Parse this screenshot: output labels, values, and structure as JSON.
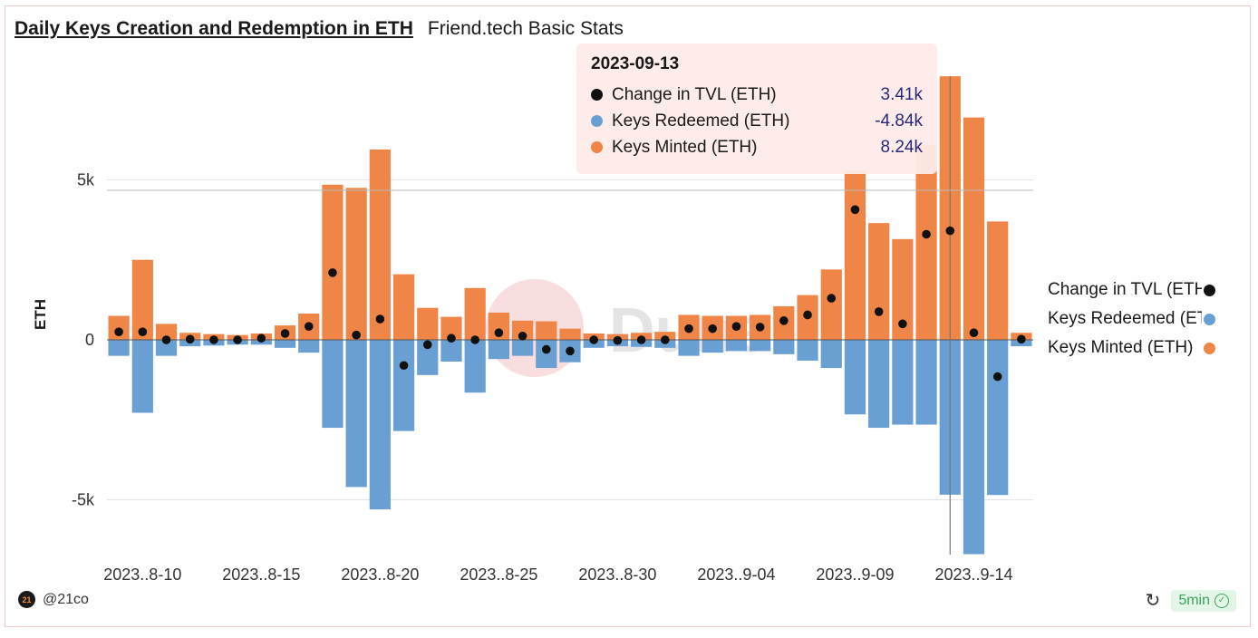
{
  "header": {
    "title": "Daily Keys Creation and Redemption in ETH",
    "subtitle": "Friend.tech Basic Stats"
  },
  "tooltip": {
    "date": "2023-09-13",
    "rows": [
      {
        "label": "Change in TVL (ETH)",
        "value": "3.41k",
        "color": "#111111"
      },
      {
        "label": "Keys Redeemed (ETH)",
        "value": "-4.84k",
        "color": "#6a9fd4"
      },
      {
        "label": "Keys Minted (ETH)",
        "value": "8.24k",
        "color": "#ef8547"
      }
    ]
  },
  "legend": [
    {
      "label": "Change in TVL (ETH)",
      "color": "#111111"
    },
    {
      "label": "Keys Redeemed (ETH)",
      "color": "#6a9fd4"
    },
    {
      "label": "Keys Minted (ETH)",
      "color": "#ef8547"
    }
  ],
  "footer": {
    "author": "@21co",
    "avatar_text": "21",
    "refresh_icon": "↻",
    "badge": "5min",
    "check_icon": "✓"
  },
  "watermark": "Dune",
  "chart_data": {
    "type": "bar",
    "ylabel": "ETH",
    "ylim": [
      -6.7,
      8.4
    ],
    "yticks": [
      {
        "value": 5,
        "label": "5k"
      },
      {
        "value": 0,
        "label": "0"
      },
      {
        "value": -5,
        "label": "-5k"
      }
    ],
    "xtick_labels": [
      "2023..8-10",
      "2023..8-15",
      "2023..8-20",
      "2023..8-25",
      "2023..8-30",
      "2023..9-04",
      "2023..9-09",
      "2023..9-14"
    ],
    "xtick_indices": [
      1,
      6,
      11,
      16,
      21,
      26,
      31,
      36
    ],
    "categories": [
      "2023-08-09",
      "2023-08-10",
      "2023-08-11",
      "2023-08-12",
      "2023-08-13",
      "2023-08-14",
      "2023-08-15",
      "2023-08-16",
      "2023-08-17",
      "2023-08-18",
      "2023-08-19",
      "2023-08-20",
      "2023-08-21",
      "2023-08-22",
      "2023-08-23",
      "2023-08-24",
      "2023-08-25",
      "2023-08-26",
      "2023-08-27",
      "2023-08-28",
      "2023-08-29",
      "2023-08-30",
      "2023-08-31",
      "2023-09-01",
      "2023-09-02",
      "2023-09-03",
      "2023-09-04",
      "2023-09-05",
      "2023-09-06",
      "2023-09-07",
      "2023-09-08",
      "2023-09-09",
      "2023-09-10",
      "2023-09-11",
      "2023-09-12",
      "2023-09-13",
      "2023-09-14",
      "2023-09-15",
      "2023-09-16"
    ],
    "highlight_index": 35,
    "series": [
      {
        "name": "Keys Minted (ETH)",
        "color": "#ef8547",
        "values": [
          0.75,
          2.5,
          0.5,
          0.22,
          0.18,
          0.15,
          0.2,
          0.45,
          0.82,
          4.85,
          4.75,
          5.95,
          2.05,
          1.0,
          0.72,
          1.62,
          0.85,
          0.6,
          0.58,
          0.35,
          0.2,
          0.18,
          0.22,
          0.25,
          0.78,
          0.75,
          0.75,
          0.78,
          1.05,
          1.4,
          2.2,
          5.3,
          3.65,
          3.15,
          6.1,
          8.24,
          6.95,
          3.7,
          0.22
        ]
      },
      {
        "name": "Keys Redeemed (ETH)",
        "color": "#6a9fd4",
        "values": [
          -0.5,
          -2.28,
          -0.5,
          -0.2,
          -0.18,
          -0.15,
          -0.15,
          -0.25,
          -0.4,
          -2.75,
          -4.6,
          -5.3,
          -2.85,
          -1.1,
          -0.68,
          -1.65,
          -0.6,
          -0.5,
          -0.88,
          -0.7,
          -0.25,
          -0.2,
          -0.22,
          -0.25,
          -0.5,
          -0.4,
          -0.35,
          -0.35,
          -0.45,
          -0.65,
          -0.88,
          -2.33,
          -2.75,
          -2.65,
          -2.65,
          -4.84,
          -6.7,
          -4.85,
          -0.2
        ]
      },
      {
        "name": "Change in TVL (ETH)",
        "color": "#111111",
        "values": [
          0.25,
          0.25,
          0.0,
          0.02,
          0.0,
          0.0,
          0.05,
          0.2,
          0.42,
          2.1,
          0.15,
          0.65,
          -0.8,
          -0.15,
          0.05,
          0.0,
          0.22,
          0.12,
          -0.3,
          -0.35,
          0.0,
          -0.02,
          0.0,
          0.0,
          0.35,
          0.35,
          0.42,
          0.4,
          0.6,
          0.78,
          1.3,
          4.07,
          0.88,
          0.5,
          3.3,
          3.41,
          0.22,
          -1.15,
          0.02
        ]
      }
    ]
  }
}
